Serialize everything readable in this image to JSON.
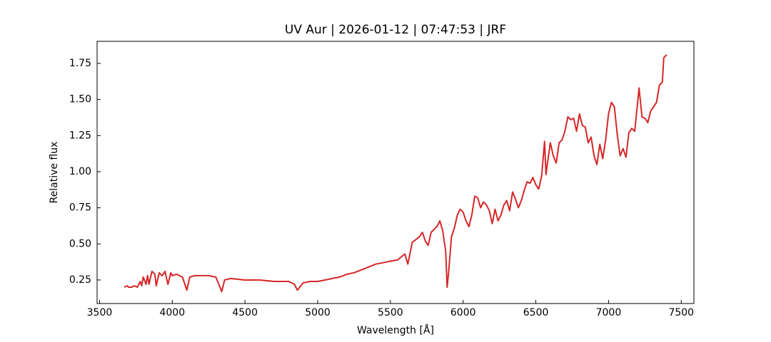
{
  "chart_data": {
    "type": "line",
    "title": "UV Aur | 2026-01-12 | 07:47:53 | JRF",
    "x_label": "Wavelength [Å]",
    "y_label": "Relative flux",
    "x": [
      3670,
      3690,
      3700,
      3720,
      3740,
      3760,
      3780,
      3790,
      3800,
      3820,
      3830,
      3840,
      3860,
      3880,
      3890,
      3910,
      3930,
      3950,
      3970,
      3990,
      4000,
      4030,
      4070,
      4100,
      4120,
      4150,
      4200,
      4250,
      4300,
      4340,
      4360,
      4400,
      4500,
      4600,
      4700,
      4800,
      4840,
      4860,
      4900,
      4950,
      5000,
      5050,
      5100,
      5150,
      5200,
      5250,
      5300,
      5350,
      5400,
      5450,
      5500,
      5550,
      5600,
      5620,
      5650,
      5700,
      5720,
      5740,
      5760,
      5780,
      5820,
      5840,
      5860,
      5880,
      5890,
      5900,
      5920,
      5940,
      5960,
      5980,
      6000,
      6020,
      6040,
      6060,
      6080,
      6100,
      6120,
      6140,
      6160,
      6180,
      6200,
      6220,
      6240,
      6260,
      6280,
      6300,
      6320,
      6340,
      6360,
      6380,
      6400,
      6420,
      6440,
      6460,
      6480,
      6500,
      6520,
      6540,
      6560,
      6570,
      6580,
      6600,
      6620,
      6640,
      6660,
      6680,
      6700,
      6720,
      6740,
      6760,
      6780,
      6800,
      6820,
      6840,
      6860,
      6880,
      6900,
      6920,
      6940,
      6960,
      6980,
      7000,
      7020,
      7040,
      7060,
      7080,
      7100,
      7120,
      7140,
      7160,
      7180,
      7200,
      7210,
      7230,
      7250,
      7270,
      7290,
      7310,
      7330,
      7350,
      7370,
      7380,
      7400
    ],
    "series": [
      {
        "name": "UV Aur",
        "color": "#d62728",
        "values": [
          0.2,
          0.21,
          0.2,
          0.2,
          0.21,
          0.2,
          0.24,
          0.21,
          0.27,
          0.22,
          0.28,
          0.22,
          0.31,
          0.29,
          0.21,
          0.3,
          0.28,
          0.31,
          0.22,
          0.3,
          0.28,
          0.29,
          0.27,
          0.18,
          0.27,
          0.28,
          0.28,
          0.28,
          0.27,
          0.17,
          0.25,
          0.26,
          0.25,
          0.25,
          0.24,
          0.24,
          0.22,
          0.18,
          0.23,
          0.24,
          0.24,
          0.25,
          0.26,
          0.27,
          0.29,
          0.3,
          0.32,
          0.34,
          0.36,
          0.37,
          0.38,
          0.39,
          0.43,
          0.36,
          0.51,
          0.55,
          0.58,
          0.52,
          0.49,
          0.58,
          0.62,
          0.66,
          0.59,
          0.45,
          0.2,
          0.3,
          0.55,
          0.61,
          0.7,
          0.74,
          0.72,
          0.66,
          0.62,
          0.7,
          0.83,
          0.82,
          0.75,
          0.79,
          0.77,
          0.73,
          0.64,
          0.74,
          0.66,
          0.7,
          0.77,
          0.8,
          0.73,
          0.86,
          0.81,
          0.75,
          0.8,
          0.87,
          0.93,
          0.92,
          0.96,
          0.91,
          0.88,
          0.97,
          1.21,
          0.98,
          1.06,
          1.2,
          1.11,
          1.06,
          1.2,
          1.22,
          1.28,
          1.38,
          1.36,
          1.37,
          1.28,
          1.4,
          1.32,
          1.31,
          1.2,
          1.24,
          1.11,
          1.05,
          1.19,
          1.09,
          1.22,
          1.4,
          1.48,
          1.45,
          1.26,
          1.11,
          1.16,
          1.1,
          1.27,
          1.3,
          1.28,
          1.48,
          1.58,
          1.38,
          1.37,
          1.34,
          1.42,
          1.45,
          1.48,
          1.6,
          1.62,
          1.79,
          1.81
        ]
      }
    ],
    "xlim": [
      3483,
      7587
    ],
    "ylim": [
      0.087,
      1.903
    ],
    "xticks": [
      3500,
      4000,
      4500,
      5000,
      5500,
      6000,
      6500,
      7000,
      7500
    ],
    "yticks": [
      {
        "value": 0.25,
        "label": "0.25"
      },
      {
        "value": 0.5,
        "label": "0.50"
      },
      {
        "value": 0.75,
        "label": "0.75"
      },
      {
        "value": 1.0,
        "label": "1.00"
      },
      {
        "value": 1.25,
        "label": "1.25"
      },
      {
        "value": 1.5,
        "label": "1.50"
      },
      {
        "value": 1.75,
        "label": "1.75"
      }
    ]
  }
}
